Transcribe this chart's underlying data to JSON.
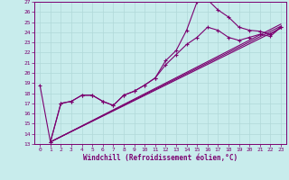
{
  "xlabel": "Windchill (Refroidissement éolien,°C)",
  "xlim": [
    -0.5,
    23.5
  ],
  "ylim": [
    13,
    27
  ],
  "xticks": [
    0,
    1,
    2,
    3,
    4,
    5,
    6,
    7,
    8,
    9,
    10,
    11,
    12,
    13,
    14,
    15,
    16,
    17,
    18,
    19,
    20,
    21,
    22,
    23
  ],
  "yticks": [
    13,
    14,
    15,
    16,
    17,
    18,
    19,
    20,
    21,
    22,
    23,
    24,
    25,
    26,
    27
  ],
  "bg_color": "#c8ecec",
  "line_color": "#7b0070",
  "grid_color": "#b0d8d8",
  "line1_x": [
    0,
    1,
    2,
    3,
    4,
    5,
    6,
    7,
    8,
    9,
    10,
    11,
    12,
    13,
    14,
    15,
    16,
    17,
    18,
    19,
    20,
    21,
    22,
    23
  ],
  "line1_y": [
    18.8,
    13.2,
    17.0,
    17.2,
    17.8,
    17.8,
    17.2,
    16.8,
    17.8,
    18.2,
    18.8,
    19.5,
    21.2,
    22.2,
    24.2,
    27.0,
    27.2,
    26.2,
    25.5,
    24.5,
    24.2,
    24.1,
    23.8,
    24.5
  ],
  "line2_x": [
    1,
    2,
    3,
    4,
    5,
    6,
    7,
    8,
    9,
    10,
    11,
    12,
    13,
    14,
    15,
    16,
    17,
    18,
    19,
    20,
    21,
    22,
    23
  ],
  "line2_y": [
    13.2,
    17.0,
    17.2,
    17.8,
    17.8,
    17.2,
    16.8,
    17.8,
    18.2,
    18.8,
    19.5,
    20.8,
    21.8,
    22.8,
    23.5,
    24.5,
    24.2,
    23.5,
    23.2,
    23.5,
    23.8,
    23.6,
    24.5
  ],
  "line3_x": [
    1,
    23
  ],
  "line3_y": [
    13.2,
    24.4
  ],
  "line4_x": [
    1,
    23
  ],
  "line4_y": [
    13.2,
    24.6
  ],
  "line5_x": [
    1,
    23
  ],
  "line5_y": [
    13.2,
    24.8
  ],
  "marker": "+",
  "markersize": 3,
  "linewidth": 0.8
}
